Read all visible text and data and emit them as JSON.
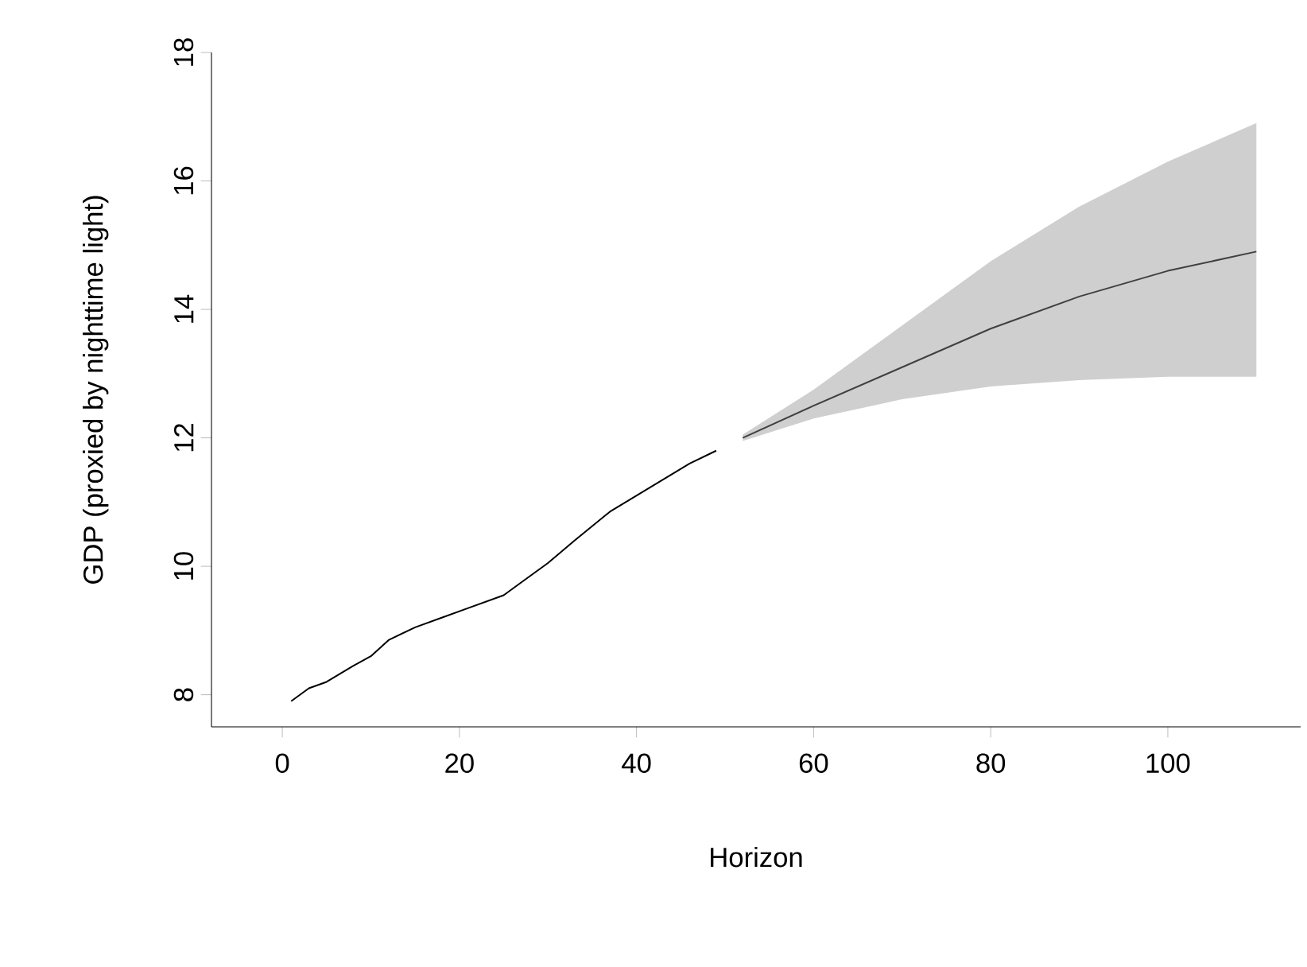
{
  "chart_data": {
    "type": "line",
    "xlabel": "Horizon",
    "ylabel": "GDP (proxied by nighttime light)",
    "xlim": [
      -8,
      115
    ],
    "ylim": [
      7.5,
      18
    ],
    "xticks": [
      0,
      20,
      40,
      60,
      80,
      100
    ],
    "yticks": [
      8,
      10,
      12,
      14,
      16,
      18
    ],
    "series": [
      {
        "color": "#000000",
        "x": [
          1,
          3,
          5,
          8,
          10,
          12,
          15,
          18,
          21,
          25,
          27,
          30,
          33,
          37,
          40,
          43,
          46,
          49
        ],
        "values": [
          7.9,
          8.1,
          8.2,
          8.45,
          8.6,
          8.85,
          9.05,
          9.2,
          9.35,
          9.55,
          9.75,
          10.05,
          10.4,
          10.85,
          11.1,
          11.35,
          11.6,
          11.8
        ]
      },
      {
        "color": "#404040",
        "x": [
          52,
          60,
          70,
          80,
          90,
          100,
          110
        ],
        "values": [
          12.0,
          12.5,
          13.1,
          13.7,
          14.2,
          14.6,
          14.9
        ],
        "lower": [
          11.95,
          12.3,
          12.6,
          12.8,
          12.9,
          12.95,
          12.95
        ],
        "upper": [
          12.05,
          12.75,
          13.75,
          14.75,
          15.6,
          16.3,
          16.9
        ]
      }
    ]
  }
}
